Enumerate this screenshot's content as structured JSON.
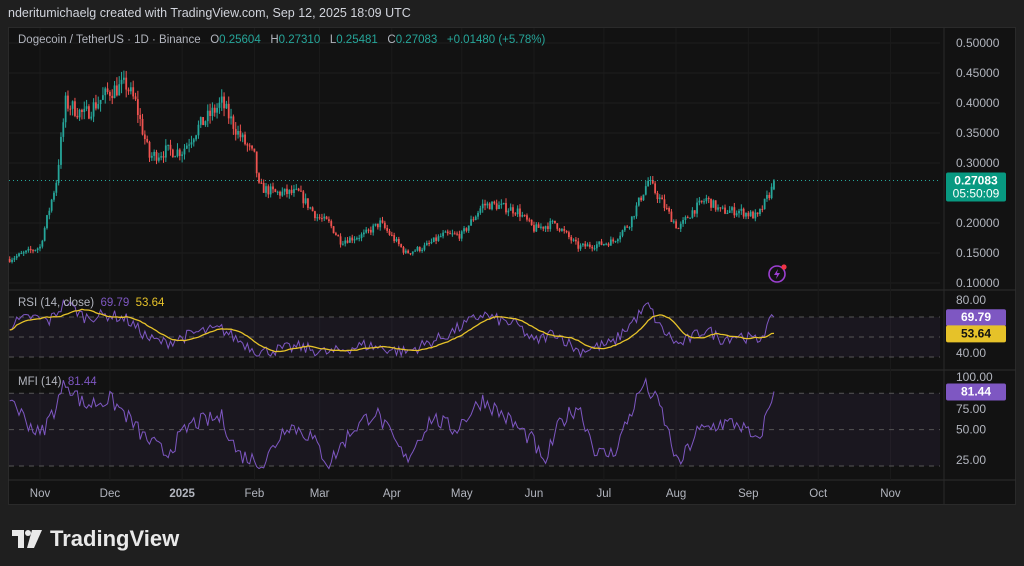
{
  "credit": "nderitumichaelg created with TradingView.com, Sep 12, 2025 18:09 UTC",
  "legend": {
    "symbol": "Dogecoin / TetherUS · 1D · Binance",
    "o_label": "O",
    "o": "0.25604",
    "h_label": "H",
    "h": "0.27310",
    "l_label": "L",
    "l": "0.25481",
    "c_label": "C",
    "c": "0.27083",
    "change": "+0.01480 (+5.78%)"
  },
  "price_badge": {
    "price": "0.27083",
    "countdown": "05:50:09"
  },
  "rsi": {
    "label": "RSI (14, close)",
    "value": "69.79",
    "ma_value": "53.64",
    "ticks": [
      "80.00",
      "40.00"
    ]
  },
  "mfi": {
    "label": "MFI (14)",
    "value": "81.44",
    "ticks": [
      "100.00",
      "75.00",
      "50.00",
      "25.00"
    ]
  },
  "logo": "TradingView",
  "colors": {
    "up": "#26a69a",
    "down": "#ef5350",
    "rsi": "#7e57c2",
    "rsi_ma": "#e6c229",
    "mfi": "#7e57c2"
  },
  "icons": {
    "alert": "lightning-alert-icon"
  },
  "chart_data": [
    {
      "type": "candlestick",
      "ylim": [
        0.1,
        0.5
      ],
      "y_ticks": [
        "0.50000",
        "0.45000",
        "0.40000",
        "0.35000",
        "0.30000",
        "0.20000",
        "0.15000",
        "0.10000"
      ],
      "x_ticks": [
        "Nov",
        "Dec",
        "2025",
        "Feb",
        "Mar",
        "Apr",
        "May",
        "Jun",
        "Jul",
        "Aug",
        "Sep",
        "Oct",
        "Nov"
      ],
      "last_price": 0.27083,
      "close_keypoints": [
        [
          "2024-10-19",
          0.14
        ],
        [
          "2024-11-01",
          0.16
        ],
        [
          "2024-11-08",
          0.27
        ],
        [
          "2024-11-12",
          0.4
        ],
        [
          "2024-11-20",
          0.38
        ],
        [
          "2024-12-01",
          0.42
        ],
        [
          "2024-12-08",
          0.43
        ],
        [
          "2024-12-12",
          0.4
        ],
        [
          "2024-12-18",
          0.31
        ],
        [
          "2024-12-25",
          0.32
        ],
        [
          "2025-01-01",
          0.32
        ],
        [
          "2025-01-08",
          0.36
        ],
        [
          "2025-01-18",
          0.4
        ],
        [
          "2025-01-25",
          0.35
        ],
        [
          "2025-02-01",
          0.31
        ],
        [
          "2025-02-03",
          0.26
        ],
        [
          "2025-02-10",
          0.25
        ],
        [
          "2025-02-20",
          0.25
        ],
        [
          "2025-02-28",
          0.21
        ],
        [
          "2025-03-05",
          0.2
        ],
        [
          "2025-03-10",
          0.17
        ],
        [
          "2025-03-20",
          0.18
        ],
        [
          "2025-03-27",
          0.2
        ],
        [
          "2025-04-07",
          0.15
        ],
        [
          "2025-04-15",
          0.16
        ],
        [
          "2025-04-23",
          0.18
        ],
        [
          "2025-05-01",
          0.18
        ],
        [
          "2025-05-10",
          0.23
        ],
        [
          "2025-05-15",
          0.23
        ],
        [
          "2025-05-25",
          0.22
        ],
        [
          "2025-06-01",
          0.19
        ],
        [
          "2025-06-10",
          0.2
        ],
        [
          "2025-06-20",
          0.16
        ],
        [
          "2025-06-30",
          0.165
        ],
        [
          "2025-07-05",
          0.17
        ],
        [
          "2025-07-12",
          0.2
        ],
        [
          "2025-07-20",
          0.27
        ],
        [
          "2025-07-25",
          0.24
        ],
        [
          "2025-08-02",
          0.19
        ],
        [
          "2025-08-08",
          0.22
        ],
        [
          "2025-08-14",
          0.24
        ],
        [
          "2025-08-20",
          0.22
        ],
        [
          "2025-08-28",
          0.22
        ],
        [
          "2025-09-05",
          0.21
        ],
        [
          "2025-09-11",
          0.256
        ],
        [
          "2025-09-12",
          0.27083
        ]
      ]
    },
    {
      "type": "line",
      "name": "RSI (14, close)",
      "ylim": [
        20,
        90
      ],
      "bands": [
        70,
        50,
        30
      ],
      "keypoints": [
        [
          "2024-10-19",
          62
        ],
        [
          "2024-10-28",
          70
        ],
        [
          "2024-11-05",
          66
        ],
        [
          "2024-11-12",
          85
        ],
        [
          "2024-11-20",
          70
        ],
        [
          "2024-12-01",
          72
        ],
        [
          "2024-12-08",
          68
        ],
        [
          "2024-12-18",
          48
        ],
        [
          "2024-12-25",
          44
        ],
        [
          "2025-01-08",
          55
        ],
        [
          "2025-01-18",
          58
        ],
        [
          "2025-01-25",
          47
        ],
        [
          "2025-02-03",
          35
        ],
        [
          "2025-02-20",
          40
        ],
        [
          "2025-03-05",
          34
        ],
        [
          "2025-03-20",
          42
        ],
        [
          "2025-04-07",
          35
        ],
        [
          "2025-04-23",
          50
        ],
        [
          "2025-05-10",
          73
        ],
        [
          "2025-05-15",
          68
        ],
        [
          "2025-05-25",
          62
        ],
        [
          "2025-06-01",
          45
        ],
        [
          "2025-06-10",
          55
        ],
        [
          "2025-06-20",
          36
        ],
        [
          "2025-07-05",
          44
        ],
        [
          "2025-07-12",
          62
        ],
        [
          "2025-07-20",
          82
        ],
        [
          "2025-07-25",
          60
        ],
        [
          "2025-08-02",
          42
        ],
        [
          "2025-08-14",
          58
        ],
        [
          "2025-08-20",
          48
        ],
        [
          "2025-08-28",
          52
        ],
        [
          "2025-09-05",
          46
        ],
        [
          "2025-09-12",
          69.79
        ]
      ]
    },
    {
      "type": "line",
      "name": "MFI (14)",
      "ylim": [
        15,
        105
      ],
      "bands": [
        80,
        50,
        20
      ],
      "keypoints": [
        [
          "2024-10-19",
          78
        ],
        [
          "2024-10-25",
          60
        ],
        [
          "2024-11-01",
          45
        ],
        [
          "2024-11-08",
          70
        ],
        [
          "2024-11-12",
          90
        ],
        [
          "2024-11-20",
          70
        ],
        [
          "2024-12-01",
          75
        ],
        [
          "2024-12-08",
          62
        ],
        [
          "2024-12-15",
          45
        ],
        [
          "2024-12-25",
          30
        ],
        [
          "2025-01-05",
          55
        ],
        [
          "2025-01-18",
          60
        ],
        [
          "2025-01-25",
          30
        ],
        [
          "2025-02-05",
          22
        ],
        [
          "2025-02-15",
          55
        ],
        [
          "2025-02-25",
          45
        ],
        [
          "2025-03-05",
          22
        ],
        [
          "2025-03-15",
          50
        ],
        [
          "2025-03-25",
          65
        ],
        [
          "2025-04-07",
          25
        ],
        [
          "2025-04-18",
          60
        ],
        [
          "2025-04-28",
          50
        ],
        [
          "2025-05-10",
          75
        ],
        [
          "2025-05-20",
          60
        ],
        [
          "2025-06-01",
          40
        ],
        [
          "2025-06-05",
          20
        ],
        [
          "2025-06-12",
          55
        ],
        [
          "2025-06-20",
          70
        ],
        [
          "2025-06-28",
          30
        ],
        [
          "2025-07-05",
          30
        ],
        [
          "2025-07-18",
          88
        ],
        [
          "2025-07-25",
          70
        ],
        [
          "2025-08-02",
          20
        ],
        [
          "2025-08-10",
          48
        ],
        [
          "2025-08-20",
          55
        ],
        [
          "2025-08-28",
          55
        ],
        [
          "2025-09-05",
          38
        ],
        [
          "2025-09-12",
          81.44
        ]
      ]
    }
  ]
}
